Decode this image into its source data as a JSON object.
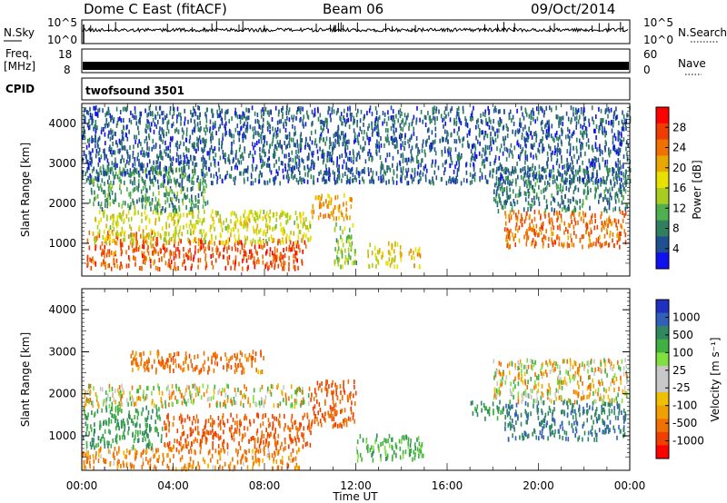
{
  "header": {
    "title": "Dome C East (fitACF)",
    "beam": "Beam 06",
    "date": "09/Oct/2014"
  },
  "status_panels": {
    "nsky_label": "N.Sky",
    "nsky_ticks": [
      "10^5",
      "10^0"
    ],
    "nsearch_label": "N.Search",
    "nsearch_ticks": [
      "10^5",
      "10^0"
    ],
    "freq_label": "Freq.",
    "freq_unit": "[MHz]",
    "freq_ticks": [
      "18",
      "8"
    ],
    "nave_label": "Nave",
    "nave_ticks": [
      "60",
      "0"
    ],
    "cpid_label": "CPID",
    "cpid_value": "twofsound 3501"
  },
  "chart_data": [
    {
      "type": "heatmap",
      "name": "power-panel",
      "ylabel": "Slant Range [km]",
      "xlabel": "",
      "ylim": [
        180,
        4500
      ],
      "y_ticks": [
        "1000",
        "2000",
        "3000",
        "4000"
      ],
      "colorbar_label": "Power [dB]",
      "colorbar_ticks": [
        "28",
        "24",
        "20",
        "16",
        "12",
        "8",
        "4"
      ],
      "colorbar_colors": [
        "#ff0000",
        "#f03c00",
        "#f07000",
        "#e8a800",
        "#e8e000",
        "#a8cc20",
        "#50b050",
        "#308060",
        "#205090",
        "#1010f0"
      ],
      "regions": [
        {
          "t0": 0.2,
          "t1": 3.3,
          "r0": 350,
          "r1": 1300,
          "level": 26
        },
        {
          "t0": 3.3,
          "t1": 9.8,
          "r0": 350,
          "r1": 1100,
          "level": 27
        },
        {
          "t0": 0.5,
          "t1": 10.0,
          "r0": 1000,
          "r1": 1800,
          "level": 17
        },
        {
          "t0": 0.3,
          "t1": 5.5,
          "r0": 1800,
          "r1": 2900,
          "level": 10
        },
        {
          "t0": 10.0,
          "t1": 11.8,
          "r0": 1600,
          "r1": 2200,
          "level": 22
        },
        {
          "t0": 11.0,
          "t1": 12.0,
          "r0": 400,
          "r1": 1500,
          "level": 14
        },
        {
          "t0": 12.5,
          "t1": 14.0,
          "r0": 400,
          "r1": 1000,
          "level": 18
        },
        {
          "t0": 14.3,
          "t1": 14.8,
          "r0": 400,
          "r1": 900,
          "level": 21
        },
        {
          "t0": 18.5,
          "t1": 23.8,
          "r0": 900,
          "r1": 1800,
          "level": 25
        },
        {
          "t0": 18.0,
          "t1": 23.9,
          "r0": 1800,
          "r1": 2900,
          "level": 8
        },
        {
          "t0": 0.0,
          "t1": 24.0,
          "r0": 2500,
          "r1": 4400,
          "level": 6
        }
      ]
    },
    {
      "type": "heatmap",
      "name": "velocity-panel",
      "ylabel": "Slant Range [km]",
      "xlabel": "Time UT",
      "ylim": [
        180,
        4500
      ],
      "x_ticks": [
        "00:00",
        "04:00",
        "08:00",
        "12:00",
        "16:00",
        "20:00",
        "00:00"
      ],
      "y_ticks": [
        "1000",
        "2000",
        "3000",
        "4000"
      ],
      "colorbar_label": "Velocity [m s⁻¹]",
      "colorbar_ticks": [
        "1000",
        "500",
        "100",
        "25",
        "-25",
        "-100",
        "-500",
        "-1000"
      ],
      "colorbar_colors": [
        "#2030c0",
        "#3060b8",
        "#308860",
        "#40b040",
        "#80e040",
        "#c8c8c8",
        "#c8c8c8",
        "#f0c000",
        "#f0a000",
        "#f07000",
        "#f04000",
        "#ff0000"
      ],
      "regions": [
        {
          "t0": 0.0,
          "t1": 9.5,
          "r0": 180,
          "r1": 700,
          "vel": -150
        },
        {
          "t0": 0.0,
          "t1": 3.5,
          "r0": 700,
          "r1": 1700,
          "vel": 300
        },
        {
          "t0": 3.5,
          "t1": 10.0,
          "r0": 700,
          "r1": 1500,
          "vel": -300
        },
        {
          "t0": 0.0,
          "t1": 10.0,
          "r0": 1700,
          "r1": 2200,
          "vel": 0
        },
        {
          "t0": 10.0,
          "t1": 12.0,
          "r0": 1200,
          "r1": 2300,
          "vel": -300
        },
        {
          "t0": 2.0,
          "t1": 8.0,
          "r0": 2500,
          "r1": 3000,
          "vel": -200
        },
        {
          "t0": 12.0,
          "t1": 15.0,
          "r0": 400,
          "r1": 1000,
          "vel": 200
        },
        {
          "t0": 17.0,
          "t1": 18.5,
          "r0": 1400,
          "r1": 1800,
          "vel": 300
        },
        {
          "t0": 18.5,
          "t1": 23.8,
          "r0": 900,
          "r1": 1800,
          "vel": 700
        },
        {
          "t0": 18.0,
          "t1": 23.9,
          "r0": 1800,
          "r1": 2800,
          "vel": 0
        }
      ]
    }
  ]
}
